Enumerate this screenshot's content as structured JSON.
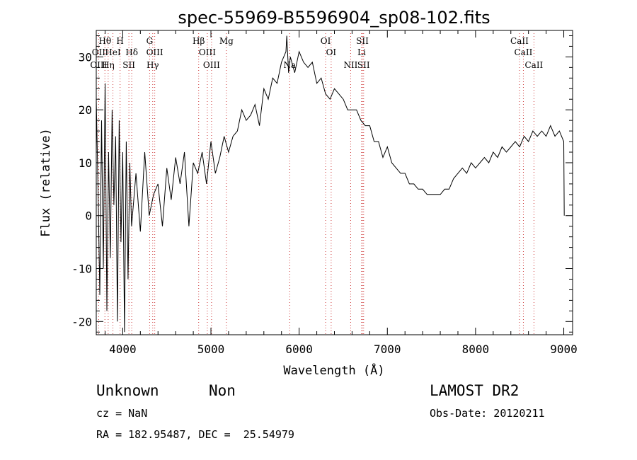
{
  "chart_data": {
    "type": "line",
    "title": "spec-55969-B5596904_sp08-102.fits",
    "xlabel": "Wavelength (Å)",
    "ylabel": "Flux (relative)",
    "xlim": [
      3700,
      9100
    ],
    "ylim": [
      -22.5,
      35
    ],
    "x_ticks": [
      4000,
      5000,
      6000,
      7000,
      8000,
      9000
    ],
    "y_ticks": [
      -20,
      -10,
      0,
      10,
      20,
      30
    ],
    "grid": false,
    "series": [
      {
        "x": [
          3700,
          3720,
          3740,
          3760,
          3780,
          3800,
          3820,
          3840,
          3860,
          3880,
          3900,
          3920,
          3940,
          3960,
          3980,
          4000,
          4020,
          4040,
          4060,
          4080,
          4100,
          4150,
          4200,
          4250,
          4300,
          4350,
          4400,
          4450,
          4500,
          4550,
          4600,
          4650,
          4700,
          4750,
          4800,
          4850,
          4900,
          4950,
          5000,
          5050,
          5100,
          5150,
          5200,
          5250,
          5300,
          5350,
          5400,
          5450,
          5500,
          5550,
          5600,
          5650,
          5700,
          5750,
          5800,
          5850,
          5860,
          5880,
          5900,
          5950,
          6000,
          6050,
          6100,
          6150,
          6200,
          6250,
          6300,
          6350,
          6400,
          6450,
          6500,
          6550,
          6600,
          6650,
          6700,
          6750,
          6800,
          6850,
          6900,
          6950,
          7000,
          7050,
          7100,
          7150,
          7200,
          7250,
          7300,
          7350,
          7400,
          7450,
          7500,
          7550,
          7600,
          7650,
          7700,
          7750,
          7800,
          7850,
          7900,
          7950,
          8000,
          8050,
          8100,
          8150,
          8200,
          8250,
          8300,
          8350,
          8400,
          8450,
          8500,
          8550,
          8600,
          8650,
          8700,
          8750,
          8800,
          8850,
          8900,
          8950,
          9000,
          9005
        ],
        "y": [
          22,
          5,
          -15,
          18,
          -10,
          25,
          -18,
          12,
          -8,
          20,
          2,
          15,
          -20,
          18,
          -5,
          12,
          -22,
          14,
          -12,
          10,
          -2,
          8,
          -3,
          12,
          0,
          4,
          6,
          -2,
          9,
          3,
          11,
          6,
          12,
          -2,
          10,
          8,
          12,
          6,
          14,
          8,
          11,
          15,
          12,
          15,
          16,
          20,
          18,
          19,
          21,
          17,
          24,
          22,
          26,
          25,
          29,
          31,
          34,
          27,
          30,
          27,
          31,
          29,
          28,
          29,
          25,
          26,
          23,
          22,
          24,
          23,
          22,
          20,
          20,
          20,
          18,
          17,
          17,
          14,
          14,
          11,
          13,
          10,
          9,
          8,
          8,
          6,
          6,
          5,
          5,
          4,
          4,
          4,
          4,
          5,
          5,
          7,
          8,
          9,
          8,
          10,
          9,
          10,
          11,
          10,
          12,
          11,
          13,
          12,
          13,
          14,
          13,
          15,
          14,
          16,
          15,
          16,
          15,
          17,
          15,
          16,
          14,
          0
        ]
      }
    ],
    "line_ids": [
      {
        "label": "Hθ",
        "wave": 3798,
        "row": 1,
        "dotted": true
      },
      {
        "label": "H",
        "wave": 3970,
        "row": 1,
        "dotted": true
      },
      {
        "label": "G",
        "wave": 4305,
        "row": 1,
        "dotted": true
      },
      {
        "label": "Hβ",
        "wave": 4861,
        "row": 1,
        "dotted": true
      },
      {
        "label": "Mg",
        "wave": 5175,
        "row": 1,
        "dotted": true
      },
      {
        "label": "OI",
        "wave": 6300,
        "row": 1,
        "dotted": true
      },
      {
        "label": "SII",
        "wave": 6717,
        "row": 1,
        "dotted": true
      },
      {
        "label": "CaII",
        "wave": 8498,
        "row": 1,
        "dotted": true
      },
      {
        "label": "OII",
        "wave": 3727,
        "row": 2,
        "dotted": false
      },
      {
        "label": "HeI",
        "wave": 3889,
        "row": 2,
        "dotted": true
      },
      {
        "label": "Hδ",
        "wave": 4102,
        "row": 2,
        "dotted": true
      },
      {
        "label": "OIII",
        "wave": 4363,
        "row": 2,
        "dotted": true
      },
      {
        "label": "OIII",
        "wave": 4959,
        "row": 2,
        "dotted": true
      },
      {
        "label": "OI",
        "wave": 6363,
        "row": 2,
        "dotted": true
      },
      {
        "label": "Li",
        "wave": 6708,
        "row": 2,
        "dotted": true
      },
      {
        "label": "CaII",
        "wave": 8542,
        "row": 2,
        "dotted": true
      },
      {
        "label": "OIII",
        "wave": 3727,
        "row": 3,
        "dotted": true
      },
      {
        "label": "Hη",
        "wave": 3835,
        "row": 3,
        "dotted": true
      },
      {
        "label": "SII",
        "wave": 4070,
        "row": 3,
        "dotted": true
      },
      {
        "label": "Hγ",
        "wave": 4340,
        "row": 3,
        "dotted": true
      },
      {
        "label": "OIII",
        "wave": 5007,
        "row": 3,
        "dotted": true
      },
      {
        "label": "Na",
        "wave": 5893,
        "row": 3,
        "dotted": true
      },
      {
        "label": "NII",
        "wave": 6584,
        "row": 3,
        "dotted": true
      },
      {
        "label": "SII",
        "wave": 6731,
        "row": 3,
        "dotted": true
      },
      {
        "label": "CaII",
        "wave": 8662,
        "row": 3,
        "dotted": true
      }
    ]
  },
  "info": {
    "class_label": "Unknown",
    "subclass_label": "Non",
    "survey": "LAMOST DR2",
    "cz": "cz = NaN",
    "obs_date": "Obs-Date: 20120211",
    "coords": "RA = 182.95487, DEC =  25.54979"
  },
  "colors": {
    "spectrum": "#000000",
    "line_markers": "#cc3333"
  }
}
